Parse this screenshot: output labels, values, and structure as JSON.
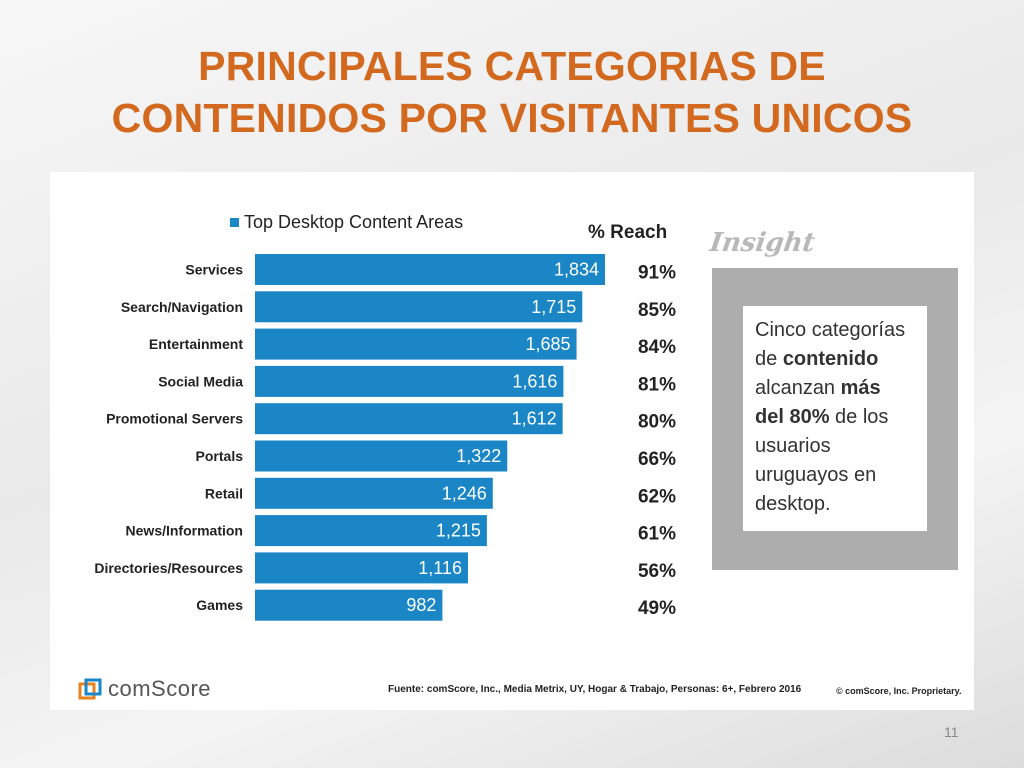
{
  "slide": {
    "title_line1": "PRINCIPALES CATEGORIAS DE",
    "title_line2": "CONTENIDOS POR VISITANTES UNICOS",
    "page_number": "11"
  },
  "colors": {
    "title": "#d3691f",
    "bar": "#1a86c5",
    "insight_frame": "#adadad"
  },
  "chart_data": {
    "type": "bar",
    "orientation": "horizontal",
    "legend": "Top Desktop Content Areas",
    "reach_header": "% Reach",
    "categories": [
      "Services",
      "Search/Navigation",
      "Entertainment",
      "Social Media",
      "Promotional Servers",
      "Portals",
      "Retail",
      "News/Information",
      "Directories/Resources",
      "Games"
    ],
    "series": [
      {
        "name": "Top Desktop Content Areas",
        "values": [
          1834,
          1715,
          1685,
          1616,
          1612,
          1322,
          1246,
          1215,
          1116,
          982
        ],
        "labels": [
          "1,834",
          "1,715",
          "1,685",
          "1,616",
          "1,612",
          "1,322",
          "1,246",
          "1,215",
          "1,116",
          "982"
        ]
      }
    ],
    "reach": [
      "91%",
      "85%",
      "84%",
      "81%",
      "80%",
      "66%",
      "62%",
      "61%",
      "56%",
      "49%"
    ],
    "xlim": [
      0,
      1834
    ]
  },
  "insight": {
    "heading": "Insight",
    "t1": "Cinco categorías de ",
    "b1": "contenido",
    "t2": " alcanzan ",
    "b2": "más del 80%",
    "t3": " de los usuarios uruguayos en desktop."
  },
  "footer": {
    "logo_text": "comScore",
    "source": "Fuente: comScore, Inc., Media Metrix, UY, Hogar & Trabajo, Personas: 6+, Febrero 2016",
    "copyright": "© comScore, Inc. Proprietary."
  }
}
